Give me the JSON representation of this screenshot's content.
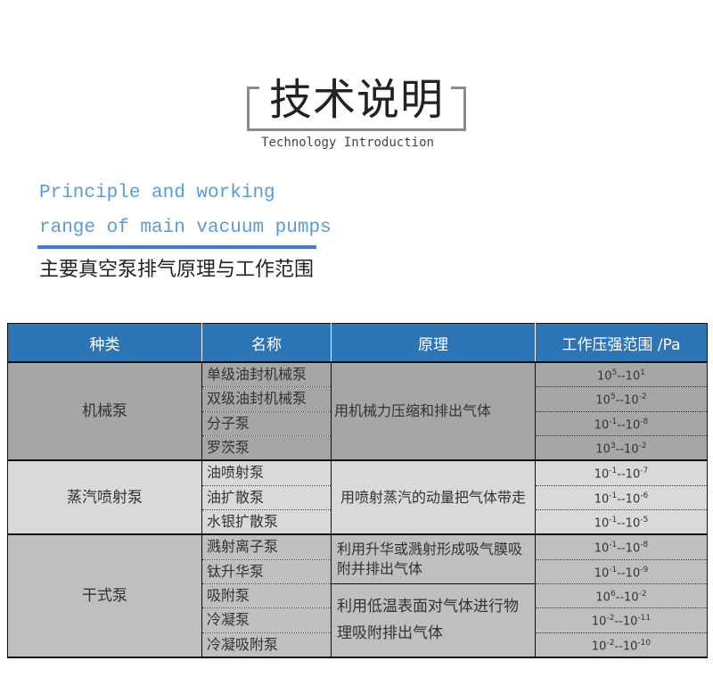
{
  "header": {
    "title": "技术说明",
    "subtitle": "Technology Introduction"
  },
  "section": {
    "en_line1": "Principle and working",
    "en_line2": "range of main vacuum pumps",
    "cn_title": "主要真空泵排气原理与工作范围"
  },
  "colors": {
    "header_bg": "#2e75b6",
    "accent": "#5b9bd5",
    "group1": "#a6a6a6",
    "group2": "#d9d9d9",
    "group3": "#bfbfbf"
  },
  "table": {
    "headers": [
      "种类",
      "名称",
      "原理",
      "工作压强范围 /Pa"
    ],
    "groups": [
      {
        "type": "机械泵",
        "principles": [
          "用机械力压缩和排出气体"
        ],
        "rows": [
          {
            "name": "单级油封机械泵",
            "range": [
              "5",
              "1"
            ]
          },
          {
            "name": "双级油封机械泵",
            "range": [
              "5",
              "-2"
            ]
          },
          {
            "name": "分子泵",
            "range": [
              "-1",
              "-8"
            ]
          },
          {
            "name": "罗茨泵",
            "range": [
              "3",
              "-2"
            ]
          }
        ]
      },
      {
        "type": "蒸汽喷射泵",
        "principles": [
          "用喷射蒸汽的动量把气体带走"
        ],
        "rows": [
          {
            "name": "油喷射泵",
            "range": [
              "-1",
              "-7"
            ]
          },
          {
            "name": "油扩散泵",
            "range": [
              "-1",
              "-6"
            ]
          },
          {
            "name": "水银扩散泵",
            "range": [
              "-1",
              "-5"
            ]
          }
        ]
      },
      {
        "type": "干式泵",
        "principles": [
          "利用升华或溅射形成吸气膜吸附并排出气体",
          "利用低温表面对气体进行物理吸附排出气体"
        ],
        "rows": [
          {
            "name": "溅射离子泵",
            "range": [
              "-1",
              "-8"
            ]
          },
          {
            "name": "钛升华泵",
            "range": [
              "-1",
              "-9"
            ]
          },
          {
            "name": "吸附泵",
            "range": [
              "6",
              "-2"
            ]
          },
          {
            "name": "冷凝泵",
            "range": [
              "-2",
              "-11"
            ]
          },
          {
            "name": "冷凝吸附泵",
            "range": [
              "-2",
              "-10"
            ]
          }
        ]
      }
    ]
  }
}
